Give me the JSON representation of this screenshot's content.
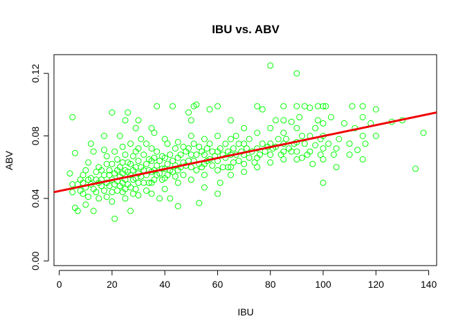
{
  "chart_data": {
    "type": "scatter",
    "title": "IBU vs. ABV",
    "xlabel": "IBU",
    "ylabel": "ABV",
    "xlim": [
      -2,
      143
    ],
    "ylim": [
      -0.003,
      0.132
    ],
    "x_ticks": [
      "0",
      "20",
      "40",
      "60",
      "80",
      "100",
      "120",
      "140"
    ],
    "y_ticks": [
      "0.00",
      "0.04",
      "0.08",
      "0.12"
    ],
    "grid": false,
    "legend": "none",
    "colors": {
      "points": "#00ff00",
      "fit_line": "#ee0000",
      "frame": "#000000"
    },
    "fit_line": {
      "x": [
        -2,
        143
      ],
      "y": [
        0.044,
        0.095
      ]
    },
    "points": [
      [
        5,
        0.092
      ],
      [
        4,
        0.056
      ],
      [
        5,
        0.049
      ],
      [
        5,
        0.044
      ],
      [
        6,
        0.034
      ],
      [
        6,
        0.069
      ],
      [
        7,
        0.049
      ],
      [
        7,
        0.032
      ],
      [
        8,
        0.052
      ],
      [
        8,
        0.045
      ],
      [
        9,
        0.043
      ],
      [
        9,
        0.05
      ],
      [
        9,
        0.055
      ],
      [
        10,
        0.047
      ],
      [
        10,
        0.058
      ],
      [
        10,
        0.036
      ],
      [
        11,
        0.063
      ],
      [
        11,
        0.052
      ],
      [
        11,
        0.041
      ],
      [
        12,
        0.053
      ],
      [
        12,
        0.049
      ],
      [
        12,
        0.075
      ],
      [
        13,
        0.07
      ],
      [
        13,
        0.046
      ],
      [
        13,
        0.032
      ],
      [
        14,
        0.052
      ],
      [
        14,
        0.057
      ],
      [
        14,
        0.044
      ],
      [
        15,
        0.05
      ],
      [
        15,
        0.06
      ],
      [
        15,
        0.04
      ],
      [
        16,
        0.058
      ],
      [
        16,
        0.048
      ],
      [
        16,
        0.052
      ],
      [
        17,
        0.071
      ],
      [
        17,
        0.055
      ],
      [
        17,
        0.045
      ],
      [
        17,
        0.08
      ],
      [
        18,
        0.062
      ],
      [
        18,
        0.05
      ],
      [
        18,
        0.041
      ],
      [
        18,
        0.067
      ],
      [
        19,
        0.055
      ],
      [
        19,
        0.048
      ],
      [
        19,
        0.058
      ],
      [
        20,
        0.095
      ],
      [
        20,
        0.062
      ],
      [
        20,
        0.052
      ],
      [
        20,
        0.044
      ],
      [
        20,
        0.038
      ],
      [
        21,
        0.07
      ],
      [
        21,
        0.056
      ],
      [
        21,
        0.049
      ],
      [
        21,
        0.027
      ],
      [
        22,
        0.065
      ],
      [
        22,
        0.058
      ],
      [
        22,
        0.051
      ],
      [
        22,
        0.045
      ],
      [
        23,
        0.08
      ],
      [
        23,
        0.06
      ],
      [
        23,
        0.054
      ],
      [
        23,
        0.048
      ],
      [
        24,
        0.073
      ],
      [
        24,
        0.063
      ],
      [
        24,
        0.056
      ],
      [
        24,
        0.05
      ],
      [
        24,
        0.044
      ],
      [
        25,
        0.09
      ],
      [
        25,
        0.068
      ],
      [
        25,
        0.058
      ],
      [
        25,
        0.052
      ],
      [
        25,
        0.046
      ],
      [
        25,
        0.04
      ],
      [
        26,
        0.095
      ],
      [
        26,
        0.063
      ],
      [
        26,
        0.057
      ],
      [
        26,
        0.049
      ],
      [
        27,
        0.075
      ],
      [
        27,
        0.062
      ],
      [
        27,
        0.055
      ],
      [
        27,
        0.047
      ],
      [
        27,
        0.032
      ],
      [
        28,
        0.067
      ],
      [
        28,
        0.058
      ],
      [
        28,
        0.052
      ],
      [
        28,
        0.043
      ],
      [
        29,
        0.085
      ],
      [
        29,
        0.07
      ],
      [
        29,
        0.06
      ],
      [
        29,
        0.053
      ],
      [
        29,
        0.046
      ],
      [
        30,
        0.09
      ],
      [
        30,
        0.072
      ],
      [
        30,
        0.064
      ],
      [
        30,
        0.056
      ],
      [
        30,
        0.05
      ],
      [
        30,
        0.042
      ],
      [
        31,
        0.078
      ],
      [
        31,
        0.06
      ],
      [
        31,
        0.054
      ],
      [
        32,
        0.068
      ],
      [
        32,
        0.058
      ],
      [
        32,
        0.05
      ],
      [
        33,
        0.075
      ],
      [
        33,
        0.062
      ],
      [
        33,
        0.055
      ],
      [
        33,
        0.045
      ],
      [
        34,
        0.065
      ],
      [
        34,
        0.058
      ],
      [
        34,
        0.05
      ],
      [
        35,
        0.085
      ],
      [
        35,
        0.072
      ],
      [
        35,
        0.064
      ],
      [
        35,
        0.057
      ],
      [
        35,
        0.05
      ],
      [
        35,
        0.043
      ],
      [
        36,
        0.082
      ],
      [
        36,
        0.066
      ],
      [
        36,
        0.058
      ],
      [
        36,
        0.052
      ],
      [
        37,
        0.099
      ],
      [
        37,
        0.07
      ],
      [
        37,
        0.061
      ],
      [
        37,
        0.055
      ],
      [
        38,
        0.064
      ],
      [
        38,
        0.056
      ],
      [
        38,
        0.04
      ],
      [
        39,
        0.067
      ],
      [
        39,
        0.059
      ],
      [
        39,
        0.052
      ],
      [
        40,
        0.078
      ],
      [
        40,
        0.066
      ],
      [
        40,
        0.059
      ],
      [
        40,
        0.053
      ],
      [
        40,
        0.046
      ],
      [
        41,
        0.075
      ],
      [
        41,
        0.062
      ],
      [
        41,
        0.055
      ],
      [
        42,
        0.068
      ],
      [
        42,
        0.058
      ],
      [
        42,
        0.04
      ],
      [
        43,
        0.099
      ],
      [
        43,
        0.064
      ],
      [
        43,
        0.057
      ],
      [
        44,
        0.072
      ],
      [
        44,
        0.061
      ],
      [
        44,
        0.054
      ],
      [
        45,
        0.076
      ],
      [
        45,
        0.066
      ],
      [
        45,
        0.058
      ],
      [
        45,
        0.05
      ],
      [
        45,
        0.035
      ],
      [
        46,
        0.068
      ],
      [
        46,
        0.06
      ],
      [
        47,
        0.073
      ],
      [
        47,
        0.063
      ],
      [
        47,
        0.055
      ],
      [
        48,
        0.07
      ],
      [
        48,
        0.061
      ],
      [
        49,
        0.095
      ],
      [
        49,
        0.072
      ],
      [
        49,
        0.064
      ],
      [
        50,
        0.09
      ],
      [
        50,
        0.08
      ],
      [
        50,
        0.068
      ],
      [
        50,
        0.06
      ],
      [
        50,
        0.052
      ],
      [
        51,
        0.099
      ],
      [
        51,
        0.075
      ],
      [
        51,
        0.064
      ],
      [
        52,
        0.1
      ],
      [
        52,
        0.068
      ],
      [
        52,
        0.058
      ],
      [
        53,
        0.073
      ],
      [
        53,
        0.062
      ],
      [
        53,
        0.037
      ],
      [
        54,
        0.07
      ],
      [
        54,
        0.06
      ],
      [
        55,
        0.078
      ],
      [
        55,
        0.068
      ],
      [
        55,
        0.062
      ],
      [
        55,
        0.055
      ],
      [
        55,
        0.047
      ],
      [
        56,
        0.072
      ],
      [
        56,
        0.064
      ],
      [
        57,
        0.097
      ],
      [
        57,
        0.075
      ],
      [
        57,
        0.065
      ],
      [
        58,
        0.07
      ],
      [
        58,
        0.061
      ],
      [
        59,
        0.067
      ],
      [
        60,
        0.099
      ],
      [
        60,
        0.08
      ],
      [
        60,
        0.07
      ],
      [
        60,
        0.064
      ],
      [
        60,
        0.058
      ],
      [
        60,
        0.043
      ],
      [
        61,
        0.072
      ],
      [
        61,
        0.05
      ],
      [
        62,
        0.068
      ],
      [
        62,
        0.06
      ],
      [
        63,
        0.075
      ],
      [
        63,
        0.066
      ],
      [
        64,
        0.07
      ],
      [
        64,
        0.06
      ],
      [
        65,
        0.09
      ],
      [
        65,
        0.078
      ],
      [
        65,
        0.068
      ],
      [
        65,
        0.06
      ],
      [
        65,
        0.055
      ],
      [
        66,
        0.072
      ],
      [
        66,
        0.063
      ],
      [
        67,
        0.08
      ],
      [
        67,
        0.068
      ],
      [
        68,
        0.075
      ],
      [
        68,
        0.064
      ],
      [
        69,
        0.07
      ],
      [
        70,
        0.085
      ],
      [
        70,
        0.075
      ],
      [
        70,
        0.068
      ],
      [
        70,
        0.062
      ],
      [
        70,
        0.057
      ],
      [
        71,
        0.072
      ],
      [
        72,
        0.078
      ],
      [
        72,
        0.066
      ],
      [
        73,
        0.07
      ],
      [
        74,
        0.063
      ],
      [
        75,
        0.099
      ],
      [
        75,
        0.082
      ],
      [
        75,
        0.072
      ],
      [
        75,
        0.066
      ],
      [
        75,
        0.06
      ],
      [
        76,
        0.068
      ],
      [
        77,
        0.097
      ],
      [
        77,
        0.075
      ],
      [
        78,
        0.07
      ],
      [
        79,
        0.073
      ],
      [
        80,
        0.125
      ],
      [
        80,
        0.085
      ],
      [
        80,
        0.075
      ],
      [
        80,
        0.068
      ],
      [
        80,
        0.063
      ],
      [
        81,
        0.072
      ],
      [
        82,
        0.09
      ],
      [
        82,
        0.073
      ],
      [
        83,
        0.078
      ],
      [
        84,
        0.068
      ],
      [
        85,
        0.099
      ],
      [
        85,
        0.09
      ],
      [
        85,
        0.082
      ],
      [
        85,
        0.075
      ],
      [
        85,
        0.07
      ],
      [
        85,
        0.065
      ],
      [
        86,
        0.078
      ],
      [
        87,
        0.072
      ],
      [
        88,
        0.089
      ],
      [
        88,
        0.07
      ],
      [
        89,
        0.075
      ],
      [
        90,
        0.12
      ],
      [
        90,
        0.099
      ],
      [
        90,
        0.085
      ],
      [
        90,
        0.076
      ],
      [
        90,
        0.07
      ],
      [
        90,
        0.065
      ],
      [
        91,
        0.092
      ],
      [
        92,
        0.08
      ],
      [
        92,
        0.066
      ],
      [
        93,
        0.099
      ],
      [
        93,
        0.075
      ],
      [
        94,
        0.068
      ],
      [
        95,
        0.098
      ],
      [
        95,
        0.08
      ],
      [
        95,
        0.07
      ],
      [
        96,
        0.062
      ],
      [
        97,
        0.085
      ],
      [
        97,
        0.074
      ],
      [
        98,
        0.099
      ],
      [
        98,
        0.09
      ],
      [
        99,
        0.078
      ],
      [
        99,
        0.068
      ],
      [
        100,
        0.099
      ],
      [
        100,
        0.088
      ],
      [
        100,
        0.08
      ],
      [
        100,
        0.072
      ],
      [
        100,
        0.065
      ],
      [
        100,
        0.05
      ],
      [
        101,
        0.099
      ],
      [
        102,
        0.075
      ],
      [
        103,
        0.092
      ],
      [
        104,
        0.068
      ],
      [
        105,
        0.072
      ],
      [
        105,
        0.06
      ],
      [
        106,
        0.078
      ],
      [
        108,
        0.088
      ],
      [
        110,
        0.075
      ],
      [
        110,
        0.068
      ],
      [
        111,
        0.099
      ],
      [
        112,
        0.085
      ],
      [
        113,
        0.071
      ],
      [
        115,
        0.099
      ],
      [
        115,
        0.092
      ],
      [
        115,
        0.08
      ],
      [
        115,
        0.065
      ],
      [
        116,
        0.075
      ],
      [
        118,
        0.088
      ],
      [
        120,
        0.097
      ],
      [
        120,
        0.08
      ],
      [
        126,
        0.089
      ],
      [
        130,
        0.09
      ],
      [
        135,
        0.059
      ],
      [
        138,
        0.082
      ]
    ]
  }
}
